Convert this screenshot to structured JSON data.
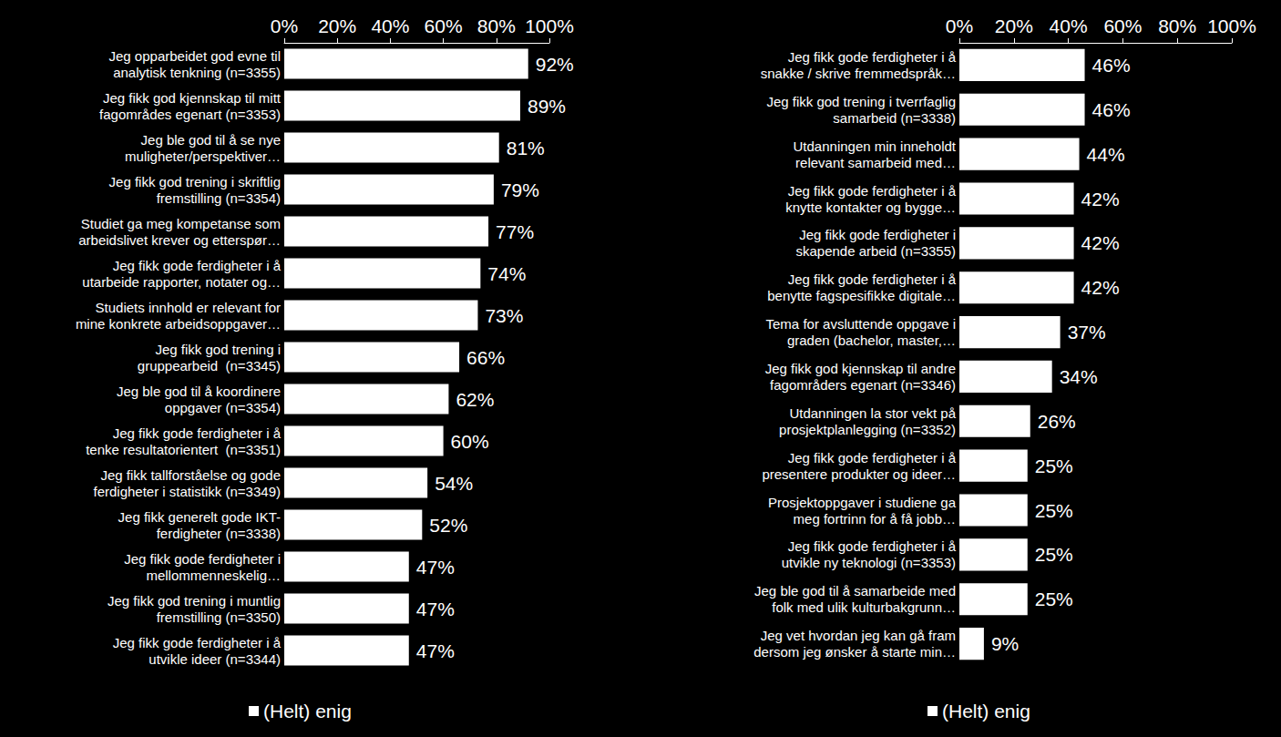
{
  "chart_data": [
    {
      "type": "bar",
      "orientation": "horizontal",
      "categories": [
        "Jeg opparbeidet god evne til\nanalytisk tenkning (n=3355)",
        "Jeg fikk god kjennskap til mitt\nfagområdes egenart (n=3353)",
        "Jeg ble god til å se nye\nmuligheter/perspektiver…",
        "Jeg fikk god trening i skriftlig\nfremstilling (n=3354)",
        "Studiet ga meg kompetanse som\narbeidslivet krever og etterspør…",
        "Jeg fikk gode ferdigheter i å\nutarbeide rapporter, notater og…",
        "Studiets innhold er relevant for\nmine konkrete arbeidsoppgaver…",
        "Jeg fikk god trening i\ngruppearbeid  (n=3345)",
        "Jeg ble god til å koordinere\noppgaver (n=3354)",
        "Jeg fikk gode ferdigheter i å\ntenke resultatorientert  (n=3351)",
        "Jeg fikk tallforståelse og gode\nferdigheter i statistikk (n=3349)",
        "Jeg fikk generelt gode IKT-\nferdigheter (n=3338)",
        "Jeg fikk gode ferdigheter i\nmellommenneskelig…",
        "Jeg fikk god trening i muntlig\nfremstilling (n=3350)",
        "Jeg fikk gode ferdigheter i å\nutvikle ideer (n=3344)"
      ],
      "series": [
        {
          "name": "(Helt) enig",
          "color": "#ffffff",
          "values": [
            92,
            89,
            81,
            79,
            77,
            74,
            73,
            66,
            62,
            60,
            54,
            52,
            47,
            47,
            47
          ],
          "value_labels": [
            "92%",
            "89%",
            "81%",
            "79%",
            "77%",
            "74%",
            "73%",
            "66%",
            "62%",
            "60%",
            "54%",
            "52%",
            "47%",
            "47%",
            "47%"
          ]
        }
      ],
      "xlim": [
        0,
        100
      ],
      "xticks": [
        {
          "value": 0,
          "label": "0%"
        },
        {
          "value": 20,
          "label": "20%"
        },
        {
          "value": 40,
          "label": "40%"
        },
        {
          "value": 60,
          "label": "60%"
        },
        {
          "value": 80,
          "label": "80%"
        },
        {
          "value": 100,
          "label": "100%"
        }
      ],
      "grid": false,
      "data_labels": true,
      "legend": "bottom"
    },
    {
      "type": "bar",
      "orientation": "horizontal",
      "categories": [
        "Jeg fikk gode ferdigheter i å\nsnakke / skrive fremmedspråk…",
        "Jeg fikk god trening i tverrfaglig\nsamarbeid (n=3338)",
        "Utdanningen min inneholdt\nrelevant samarbeid med…",
        "Jeg fikk gode ferdigheter i å\nknytte kontakter og bygge…",
        "Jeg fikk gode ferdigheter i\nskapende arbeid (n=3355)",
        "Jeg fikk gode ferdigheter i å\nbenytte fagspesifikke digitale…",
        "Tema for avsluttende oppgave i\ngraden (bachelor, master,…",
        "Jeg fikk god kjennskap til andre\nfagområders egenart (n=3346)",
        "Utdanningen la stor vekt på\nprosjektplanlegging (n=3352)",
        "Jeg fikk gode ferdigheter i å\npresentere produkter og ideer…",
        "Prosjektoppgaver i studiene ga\nmeg fortrinn for å få jobb…",
        "Jeg fikk gode ferdigheter i å\nutvikle ny teknologi (n=3353)",
        "Jeg ble god til å samarbeide med\nfolk med ulik kulturbakgrunn…",
        "Jeg vet hvordan jeg kan gå fram\ndersom jeg ønsker å starte min…"
      ],
      "series": [
        {
          "name": "(Helt) enig",
          "color": "#ffffff",
          "values": [
            46,
            46,
            44,
            42,
            42,
            42,
            37,
            34,
            26,
            25,
            25,
            25,
            25,
            9
          ],
          "value_labels": [
            "46%",
            "46%",
            "44%",
            "42%",
            "42%",
            "42%",
            "37%",
            "34%",
            "26%",
            "25%",
            "25%",
            "25%",
            "25%",
            "9%"
          ]
        }
      ],
      "xlim": [
        0,
        100
      ],
      "xticks": [
        {
          "value": 0,
          "label": "0%"
        },
        {
          "value": 20,
          "label": "20%"
        },
        {
          "value": 40,
          "label": "40%"
        },
        {
          "value": 60,
          "label": "60%"
        },
        {
          "value": 80,
          "label": "80%"
        },
        {
          "value": 100,
          "label": "100%"
        }
      ],
      "grid": false,
      "data_labels": true,
      "legend": "bottom"
    }
  ]
}
